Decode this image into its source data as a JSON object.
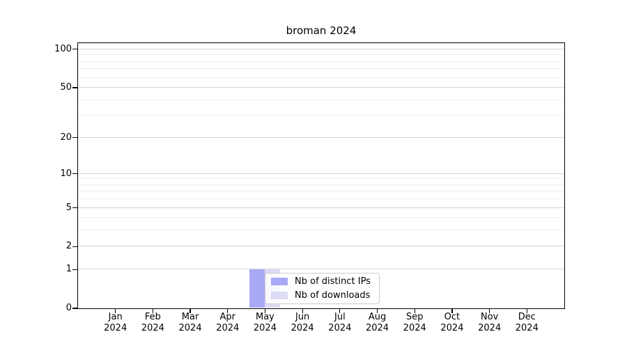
{
  "chart_data": {
    "type": "bar",
    "title": "broman 2024",
    "x_categories": [
      "Jan",
      "Feb",
      "Mar",
      "Apr",
      "May",
      "Jun",
      "Jul",
      "Aug",
      "Sep",
      "Oct",
      "Nov",
      "Dec"
    ],
    "x_year": "2024",
    "y_scale": "log(value+1)",
    "y_major_ticks": [
      0,
      1,
      2,
      5,
      10,
      20,
      50,
      100
    ],
    "y_minor_gridlines": [
      3,
      4,
      6,
      7,
      8,
      9,
      30,
      40,
      60,
      70,
      80,
      90
    ],
    "ylim": [
      0,
      112
    ],
    "grid": "horizontal",
    "legend_position": "lower-center",
    "series": [
      {
        "name": "Nb of distinct IPs",
        "color": "#a9a9f7",
        "values": [
          0,
          0,
          0,
          0,
          1,
          0,
          0,
          0,
          0,
          0,
          0,
          0
        ]
      },
      {
        "name": "Nb of downloads",
        "color": "#dcdcf7",
        "values": [
          0,
          0,
          0,
          0,
          1,
          0,
          0,
          0,
          0,
          0,
          0,
          0
        ]
      }
    ],
    "colors": {
      "axis": "#000000",
      "major_grid": "#d4d4d4",
      "minor_grid": "#efefef",
      "text": "#000000",
      "legend_border": "#cccccc"
    }
  }
}
